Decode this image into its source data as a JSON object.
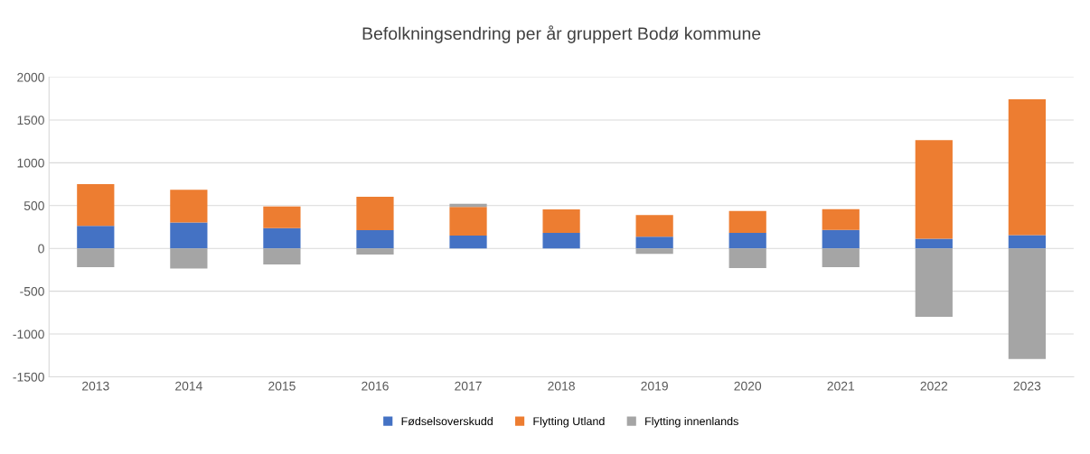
{
  "chart_data": {
    "type": "bar",
    "title": "Befolkningsendring per år gruppert Bodø kommune",
    "categories": [
      "2013",
      "2014",
      "2015",
      "2016",
      "2017",
      "2018",
      "2019",
      "2020",
      "2021",
      "2022",
      "2023"
    ],
    "stacked": true,
    "series": [
      {
        "name": "Fødselsoverskudd",
        "color": "#4472c4",
        "values": [
          262,
          304,
          236,
          214,
          150,
          182,
          136,
          182,
          216,
          114,
          155
        ]
      },
      {
        "name": "Flytting Utland",
        "color": "#ed7d31",
        "values": [
          488,
          382,
          255,
          390,
          334,
          273,
          254,
          254,
          242,
          1151,
          1587
        ]
      },
      {
        "name": "Flytting innenlands",
        "color": "#a5a5a5",
        "values": [
          -218,
          -236,
          -188,
          -71,
          37,
          0,
          -64,
          -231,
          -220,
          -800,
          -1292
        ]
      }
    ],
    "ylim": [
      -1500,
      2000
    ],
    "yticks": [
      -1500,
      -1000,
      -500,
      0,
      500,
      1000,
      1500,
      2000
    ],
    "grid": "y",
    "legend": "bottom"
  }
}
